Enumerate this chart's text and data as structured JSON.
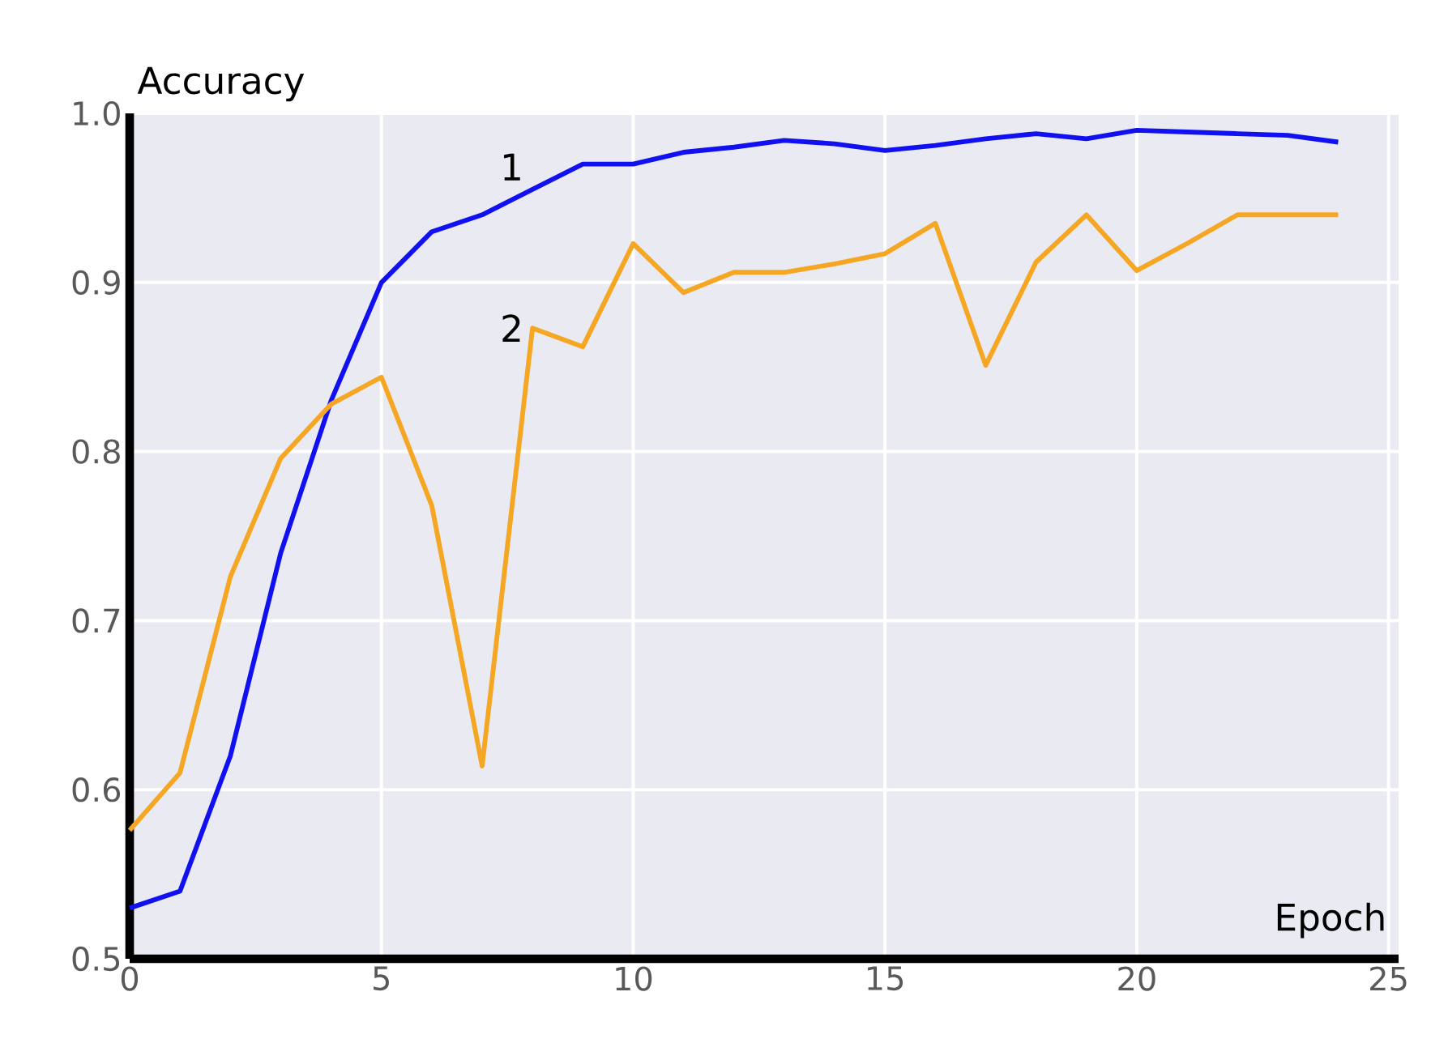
{
  "chart_data": {
    "type": "line",
    "xlabel": "Epoch",
    "ylabel": "Accuracy",
    "x": [
      0,
      1,
      2,
      3,
      4,
      5,
      6,
      7,
      8,
      9,
      10,
      11,
      12,
      13,
      14,
      15,
      16,
      17,
      18,
      19,
      20,
      21,
      22,
      23,
      24
    ],
    "series": [
      {
        "name": "1",
        "color": "#1010f0",
        "values": [
          0.53,
          0.54,
          0.62,
          0.74,
          0.83,
          0.9,
          0.93,
          0.94,
          0.955,
          0.97,
          0.97,
          0.977,
          0.98,
          0.984,
          0.982,
          0.978,
          0.981,
          0.985,
          0.988,
          0.985,
          0.99,
          0.989,
          0.988,
          0.987,
          0.983
        ]
      },
      {
        "name": "2",
        "color": "#f5a623",
        "values": [
          0.576,
          0.61,
          0.726,
          0.796,
          0.828,
          0.844,
          0.768,
          0.614,
          0.873,
          0.862,
          0.923,
          0.894,
          0.906,
          0.906,
          0.911,
          0.917,
          0.935,
          0.851,
          0.912,
          0.94,
          0.907,
          0.923,
          0.94,
          0.94,
          0.94
        ]
      }
    ],
    "xlim": [
      0,
      25.2
    ],
    "ylim": [
      0.5,
      1.0
    ],
    "xticks": [
      0,
      5,
      10,
      15,
      20,
      25
    ],
    "yticks": [
      {
        "value": 0.5,
        "label": "0.5"
      },
      {
        "value": 0.6,
        "label": "0.6"
      },
      {
        "value": 0.7,
        "label": "0.7"
      },
      {
        "value": 0.8,
        "label": "0.8"
      },
      {
        "value": 0.9,
        "label": "0.9"
      },
      {
        "value": 1.0,
        "label": "1.0"
      }
    ],
    "grid": true,
    "legend": false,
    "marker": "none",
    "line_style": "solid"
  }
}
